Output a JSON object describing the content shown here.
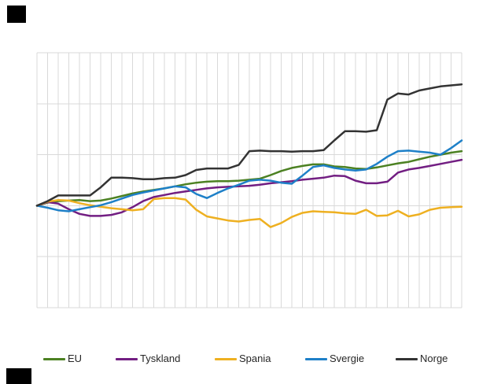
{
  "chart_data": {
    "type": "line",
    "x_points": 41,
    "x_unit": "quarter-index",
    "x": [
      0,
      1,
      2,
      3,
      4,
      5,
      6,
      7,
      8,
      9,
      10,
      11,
      12,
      13,
      14,
      15,
      16,
      17,
      18,
      19,
      20,
      21,
      22,
      23,
      24,
      25,
      26,
      27,
      28,
      29,
      30,
      31,
      32,
      33,
      34,
      35,
      36,
      37,
      38,
      39,
      40
    ],
    "x_tick_labels_visible": false,
    "y_tick_labels_visible": false,
    "ylim": [
      80,
      130
    ],
    "y_gridline_step": 10,
    "baseline_value": 100,
    "grid": {
      "vertical": true,
      "horizontal": true,
      "color": "#d9d9d9"
    },
    "legend_position": "bottom",
    "series": [
      {
        "name": "EU",
        "color": "#4c8122",
        "values": [
          100,
          100.6,
          100.9,
          101.0,
          101.1,
          100.9,
          101.0,
          101.4,
          101.9,
          102.4,
          102.8,
          103.1,
          103.4,
          103.8,
          104.2,
          104.5,
          104.7,
          104.8,
          104.8,
          104.9,
          105.1,
          105.3,
          106.0,
          106.8,
          107.4,
          107.8,
          108.1,
          108.1,
          107.7,
          107.6,
          107.3,
          107.2,
          107.5,
          107.9,
          108.3,
          108.6,
          109.1,
          109.6,
          110.0,
          110.4,
          110.7
        ]
      },
      {
        "name": "Tyskland",
        "color": "#721e82",
        "values": [
          100,
          100.7,
          100.4,
          99.3,
          98.4,
          98.0,
          98.0,
          98.2,
          98.7,
          99.7,
          100.9,
          101.7,
          102.1,
          102.5,
          102.8,
          103.1,
          103.4,
          103.6,
          103.7,
          103.8,
          103.9,
          104.1,
          104.4,
          104.6,
          104.8,
          105.1,
          105.3,
          105.5,
          105.9,
          105.8,
          104.9,
          104.4,
          104.4,
          104.7,
          106.5,
          107.1,
          107.4,
          107.8,
          108.2,
          108.6,
          109.0
        ]
      },
      {
        "name": "Spania",
        "color": "#eeb021",
        "values": [
          100,
          100.8,
          101.1,
          101.0,
          100.5,
          100.1,
          99.8,
          99.5,
          99.3,
          99.1,
          99.3,
          101.3,
          101.5,
          101.5,
          101.2,
          99.2,
          97.9,
          97.5,
          97.1,
          96.9,
          97.2,
          97.4,
          95.8,
          96.6,
          97.8,
          98.6,
          98.9,
          98.8,
          98.7,
          98.5,
          98.4,
          99.2,
          98.0,
          98.1,
          99.0,
          97.9,
          98.3,
          99.2,
          99.6,
          99.7,
          99.8
        ]
      },
      {
        "name": "Svergie",
        "color": "#1e80c8",
        "values": [
          100,
          99.6,
          99.1,
          98.9,
          99.3,
          99.7,
          100.1,
          100.7,
          101.4,
          102.1,
          102.6,
          103.0,
          103.4,
          103.8,
          103.6,
          102.3,
          101.5,
          102.5,
          103.4,
          104.1,
          104.9,
          105.1,
          104.9,
          104.5,
          104.3,
          105.9,
          107.6,
          107.9,
          107.4,
          107.1,
          106.9,
          107.1,
          108.2,
          109.6,
          110.7,
          110.8,
          110.6,
          110.4,
          110.0,
          111.3,
          112.8
        ]
      },
      {
        "name": "Norge",
        "color": "#333333",
        "values": [
          100,
          100.9,
          102.0,
          102.0,
          102.0,
          102.0,
          103.6,
          105.5,
          105.5,
          105.4,
          105.2,
          105.2,
          105.4,
          105.5,
          106.0,
          107.0,
          107.3,
          107.3,
          107.3,
          108.0,
          110.7,
          110.8,
          110.7,
          110.7,
          110.6,
          110.7,
          110.7,
          110.9,
          112.8,
          114.6,
          114.6,
          114.5,
          114.8,
          120.8,
          122.0,
          121.8,
          122.6,
          123.0,
          123.4,
          123.6,
          123.8
        ]
      }
    ]
  },
  "decorations": {
    "top_left_box_color": "#000000",
    "bottom_left_box_color": "#000000"
  }
}
